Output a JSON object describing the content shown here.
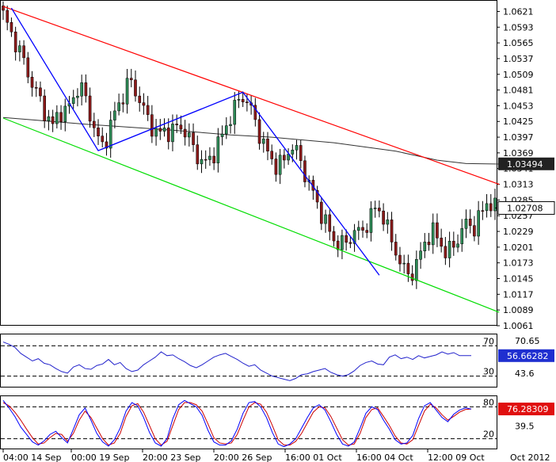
{
  "chart_data": [
    {
      "type": "candlestick",
      "panel": "price",
      "title": "",
      "ylim": [
        1.0061,
        1.064
      ],
      "y_ticks": [
        "1.0621",
        "1.0593",
        "1.0565",
        "1.0537",
        "1.0509",
        "1.0481",
        "1.0453",
        "1.0425",
        "1.0397",
        "1.0369",
        "1.0341",
        "1.0313",
        "1.0285",
        "1.0257",
        "1.0229",
        "1.0201",
        "1.0173",
        "1.0145",
        "1.0117",
        "1.0089",
        "1.0061"
      ],
      "x_ticks": [
        "04:00 14 Sep",
        "00:00 19 Sep",
        "20:00 23 Sep",
        "20:00 26 Sep",
        "16:00 01 Oct",
        "16:00 04 Oct",
        "12:00 09 Oct",
        "Oct 2012"
      ],
      "bar_count": 120,
      "path_close": [
        1.0615,
        1.0585,
        1.056,
        1.053,
        1.0495,
        1.047,
        1.044,
        1.0415,
        1.0445,
        1.044,
        1.047,
        1.049,
        1.0455,
        1.041,
        1.0378,
        1.0405,
        1.0445,
        1.047,
        1.05,
        1.0475,
        1.0445,
        1.042,
        1.04,
        1.041,
        1.0405,
        1.042,
        1.0405,
        1.038,
        1.0355,
        1.035,
        1.037,
        1.0395,
        1.0425,
        1.045,
        1.0472,
        1.0455,
        1.042,
        1.0385,
        1.036,
        1.0345,
        1.0355,
        1.0385,
        1.0365,
        1.033,
        1.03,
        1.027,
        1.024,
        1.0215,
        1.0205,
        1.021,
        1.023,
        1.0225,
        1.025,
        1.027,
        1.0262,
        1.022,
        1.019,
        1.016,
        1.015,
        1.0175,
        1.021,
        1.023,
        1.0215,
        1.019,
        1.02,
        1.0225,
        1.0245,
        1.0235,
        1.026,
        1.0285,
        1.027
      ],
      "current_price_label": "1.02708",
      "ma_label": "1.03494",
      "overlays": {
        "channel_upper": {
          "color": "#ff0000",
          "from": [
            0,
            1.063
          ],
          "to": [
            120,
            1.0313
          ]
        },
        "channel_lower": {
          "color": "#00dd00",
          "from": [
            0,
            1.0431
          ],
          "to": [
            120,
            1.0085
          ]
        },
        "zigzag": {
          "color": "#0000ff",
          "points": [
            [
              2,
              1.0627
            ],
            [
              23,
              1.0373
            ],
            [
              58,
              1.0477
            ],
            [
              91,
              1.0151
            ]
          ]
        },
        "moving_average": {
          "color": "#333333",
          "points": [
            [
              0,
              1.0432
            ],
            [
              20,
              1.042
            ],
            [
              40,
              1.041
            ],
            [
              55,
              1.0401
            ],
            [
              65,
              1.0397
            ],
            [
              80,
              1.0387
            ],
            [
              95,
              1.0372
            ],
            [
              105,
              1.0356
            ],
            [
              112,
              1.035
            ],
            [
              120,
              1.0349
            ]
          ]
        }
      }
    },
    {
      "type": "line",
      "panel": "rsi",
      "ylim": [
        15,
        85
      ],
      "levels": [
        "70",
        "30"
      ],
      "y_ticks": [
        "70.65",
        "43.6"
      ],
      "value_label": "56.66282",
      "series": [
        {
          "color": "#2222cc",
          "values": [
            75,
            72,
            68,
            60,
            55,
            50,
            53,
            47,
            45,
            40,
            36,
            34,
            42,
            45,
            40,
            39,
            44,
            46,
            52,
            45,
            48,
            40,
            36,
            38,
            45,
            50,
            55,
            62,
            57,
            58,
            53,
            49,
            44,
            41,
            45,
            50,
            55,
            58,
            60,
            56,
            52,
            47,
            43,
            45,
            38,
            34,
            30,
            28,
            26,
            24,
            27,
            32,
            33,
            36,
            38,
            40,
            35,
            32,
            30,
            32,
            37,
            44,
            48,
            50,
            46,
            45,
            55,
            58,
            53,
            55,
            52,
            57,
            54,
            56,
            58,
            62,
            59,
            61,
            57,
            57,
            57
          ]
        }
      ]
    },
    {
      "type": "line",
      "panel": "stochastic",
      "ylim": [
        0,
        100
      ],
      "levels": [
        "80",
        "20"
      ],
      "y_ticks": [
        "39.5"
      ],
      "value_label": "76.28309",
      "series": [
        {
          "color": "#cc0000",
          "values": [
            88,
            82,
            70,
            55,
            38,
            22,
            10,
            12,
            22,
            30,
            28,
            15,
            30,
            55,
            72,
            60,
            40,
            20,
            8,
            12,
            30,
            62,
            82,
            86,
            70,
            45,
            20,
            8,
            15,
            45,
            75,
            88,
            88,
            84,
            72,
            48,
            22,
            12,
            10,
            12,
            28,
            55,
            80,
            88,
            85,
            70,
            45,
            18,
            8,
            8,
            15,
            30,
            50,
            70,
            80,
            78,
            62,
            40,
            18,
            8,
            10,
            30,
            60,
            75,
            78,
            62,
            45,
            25,
            12,
            10,
            18,
            45,
            72,
            85,
            78,
            65,
            55,
            62,
            70,
            75,
            76
          ]
        },
        {
          "color": "#0000ff",
          "values": [
            92,
            78,
            62,
            42,
            28,
            14,
            8,
            16,
            28,
            34,
            22,
            12,
            38,
            65,
            78,
            55,
            30,
            14,
            6,
            18,
            40,
            72,
            88,
            82,
            60,
            32,
            12,
            6,
            20,
            58,
            84,
            92,
            86,
            80,
            64,
            36,
            14,
            8,
            8,
            16,
            38,
            68,
            88,
            90,
            80,
            60,
            32,
            10,
            5,
            10,
            20,
            40,
            60,
            78,
            84,
            74,
            52,
            28,
            10,
            6,
            14,
            40,
            68,
            80,
            75,
            55,
            38,
            18,
            10,
            12,
            26,
            58,
            82,
            88,
            74,
            60,
            52,
            66,
            74,
            78,
            76
          ]
        }
      ]
    }
  ]
}
